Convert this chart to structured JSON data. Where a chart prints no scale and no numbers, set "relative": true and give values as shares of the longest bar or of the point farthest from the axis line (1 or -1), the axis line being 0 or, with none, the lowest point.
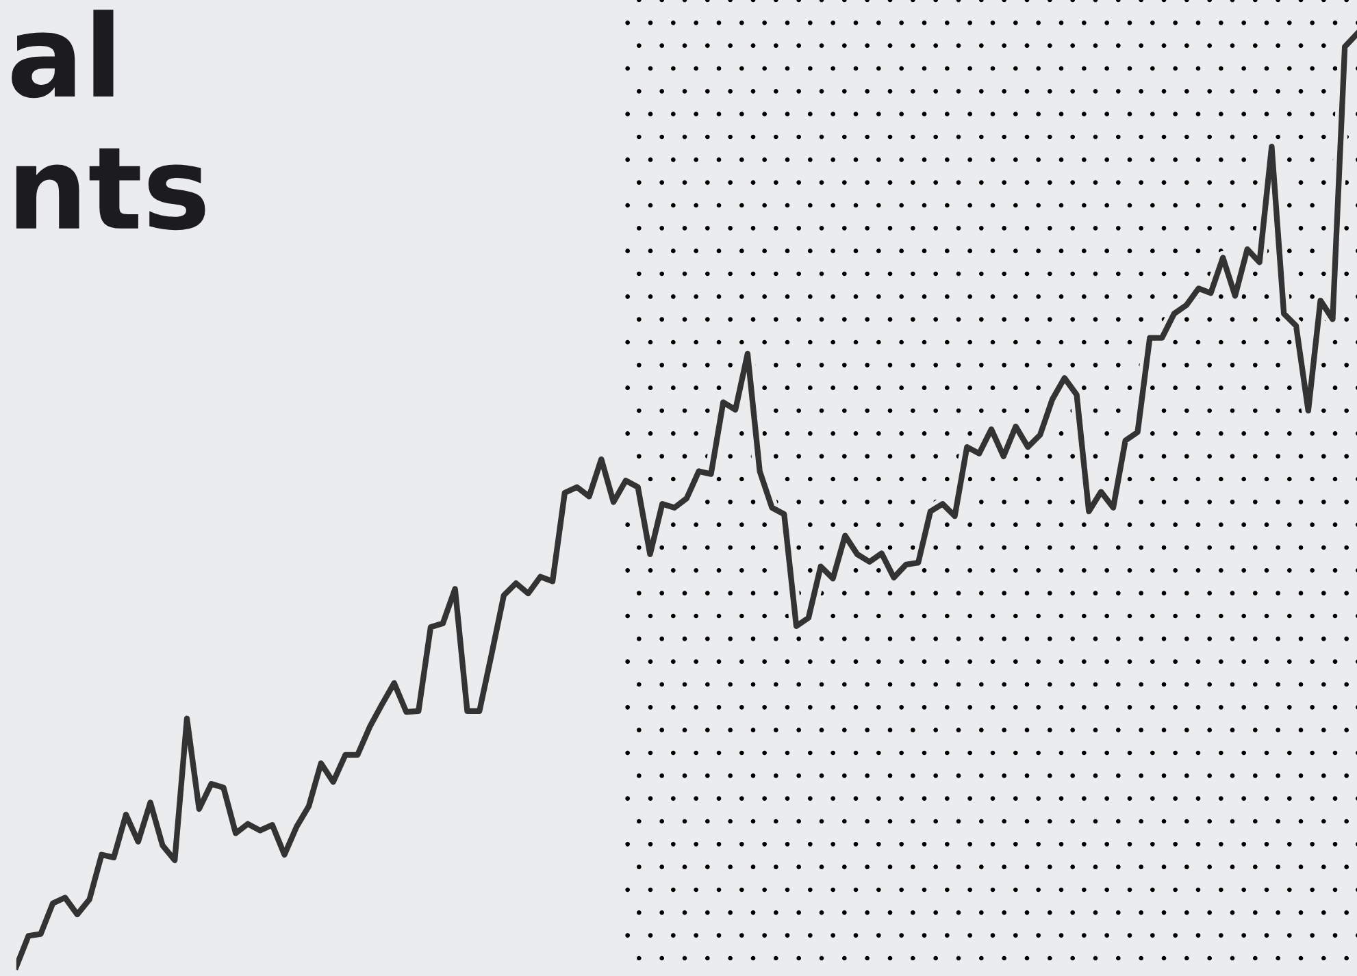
{
  "chart_data": {
    "type": "line",
    "title": "al\nnts",
    "relative": true,
    "categories": [
      null,
      null,
      null,
      null,
      null,
      null,
      null,
      null,
      null,
      null,
      null,
      null,
      null,
      null,
      null,
      null,
      null,
      null,
      null,
      null,
      null,
      null,
      null,
      null,
      null,
      null,
      null,
      null,
      null,
      null,
      null,
      null,
      null,
      null,
      null,
      null,
      null,
      null,
      null,
      null,
      null,
      null,
      null,
      null,
      null,
      null,
      null,
      null,
      null,
      null,
      null,
      null,
      null,
      null,
      null,
      null,
      null,
      null,
      null,
      null,
      null,
      null,
      null,
      null,
      null,
      null,
      null,
      null,
      null,
      null,
      null,
      null,
      null,
      null,
      null,
      null,
      null,
      null,
      null,
      null,
      null,
      null,
      null,
      null,
      null,
      null,
      null,
      null,
      null,
      null,
      null,
      null,
      null,
      null,
      null,
      null,
      null,
      null,
      null,
      null,
      null,
      null,
      null,
      null,
      null,
      null,
      null,
      null,
      null,
      null,
      null
    ],
    "series": [
      {
        "color": "#333333",
        "values": [
          0,
          0.033,
          0.035,
          0.068,
          0.074,
          0.056,
          0.072,
          0.12,
          0.117,
          0.163,
          0.134,
          0.176,
          0.13,
          0.114,
          0.266,
          0.169,
          0.196,
          0.192,
          0.143,
          0.153,
          0.146,
          0.152,
          0.12,
          0.15,
          0.172,
          0.218,
          0.198,
          0.227,
          0.227,
          0.257,
          0.281,
          0.304,
          0.273,
          0.274,
          0.364,
          0.368,
          0.405,
          0.274,
          0.274,
          0.335,
          0.398,
          0.411,
          0.4,
          0.418,
          0.413,
          0.508,
          0.514,
          0.504,
          0.544,
          0.498,
          0.521,
          0.514,
          0.442,
          0.496,
          0.492,
          0.502,
          0.531,
          0.528,
          0.605,
          0.597,
          0.657,
          0.531,
          0.492,
          0.485,
          0.365,
          0.374,
          0.429,
          0.416,
          0.462,
          0.442,
          0.434,
          0.443,
          0.417,
          0.431,
          0.433,
          0.488,
          0.496,
          0.483,
          0.557,
          0.55,
          0.576,
          0.547,
          0.579,
          0.557,
          0.57,
          0.608,
          0.631,
          0.613,
          0.488,
          0.509,
          0.492,
          0.564,
          0.573,
          0.674,
          0.674,
          0.7,
          0.709,
          0.727,
          0.722,
          0.76,
          0.719,
          0.769,
          0.755,
          0.879,
          0.7,
          0.687,
          0.596,
          0.714,
          0.694,
          0.986,
          1
        ]
      }
    ],
    "grid": false,
    "legend": false,
    "marker": "none",
    "line_style": "solid"
  }
}
